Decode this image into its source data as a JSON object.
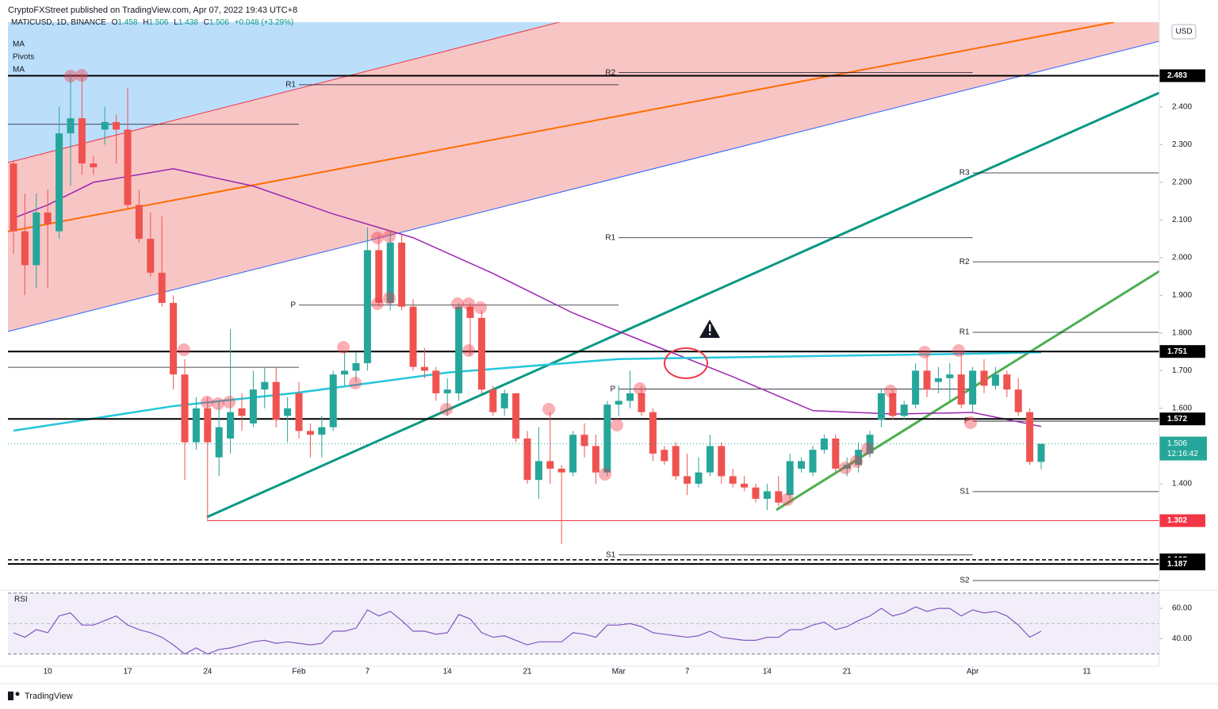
{
  "header": {
    "publisher": "CryptoFXStreet published on TradingView.com, Apr 07, 2022 19:43 UTC+8",
    "footer": "TradingView",
    "currency": "USD"
  },
  "legend": {
    "symbol": "MATICUSD, 1D, BINANCE",
    "ohlc": [
      {
        "label": "O",
        "value": 1.458
      },
      {
        "label": "H",
        "value": 1.506
      },
      {
        "label": "L",
        "value": 1.438
      },
      {
        "label": "C",
        "value": 1.506
      }
    ],
    "change": "+0.048 (+3.29%)"
  },
  "chart_data": [
    {
      "type": "candlestick",
      "up_color": "#26a69a",
      "down_color": "#ef5350",
      "x": [
        "2022-01-07",
        "2022-01-08",
        "2022-01-09",
        "2022-01-10",
        "2022-01-11",
        "2022-01-12",
        "2022-01-13",
        "2022-01-14",
        "2022-01-15",
        "2022-01-16",
        "2022-01-17",
        "2022-01-18",
        "2022-01-19",
        "2022-01-20",
        "2022-01-21",
        "2022-01-22",
        "2022-01-23",
        "2022-01-24",
        "2022-01-25",
        "2022-01-26",
        "2022-01-27",
        "2022-01-28",
        "2022-01-29",
        "2022-01-30",
        "2022-01-31",
        "2022-02-01",
        "2022-02-02",
        "2022-02-03",
        "2022-02-04",
        "2022-02-05",
        "2022-02-06",
        "2022-02-07",
        "2022-02-08",
        "2022-02-09",
        "2022-02-10",
        "2022-02-11",
        "2022-02-12",
        "2022-02-13",
        "2022-02-14",
        "2022-02-15",
        "2022-02-16",
        "2022-02-17",
        "2022-02-18",
        "2022-02-19",
        "2022-02-20",
        "2022-02-21",
        "2022-02-22",
        "2022-02-23",
        "2022-02-24",
        "2022-02-25",
        "2022-02-26",
        "2022-02-27",
        "2022-02-28",
        "2022-03-01",
        "2022-03-02",
        "2022-03-03",
        "2022-03-04",
        "2022-03-05",
        "2022-03-06",
        "2022-03-07",
        "2022-03-08",
        "2022-03-09",
        "2022-03-10",
        "2022-03-11",
        "2022-03-12",
        "2022-03-13",
        "2022-03-14",
        "2022-03-15",
        "2022-03-16",
        "2022-03-17",
        "2022-03-18",
        "2022-03-19",
        "2022-03-20",
        "2022-03-21",
        "2022-03-22",
        "2022-03-23",
        "2022-03-24",
        "2022-03-25",
        "2022-03-26",
        "2022-03-27",
        "2022-03-28",
        "2022-03-29",
        "2022-03-30",
        "2022-03-31",
        "2022-04-01",
        "2022-04-02",
        "2022-04-03",
        "2022-04-04",
        "2022-04-05",
        "2022-04-06",
        "2022-04-07"
      ],
      "open": [
        2.25,
        2.07,
        1.98,
        2.12,
        2.07,
        2.33,
        2.37,
        2.25,
        2.34,
        2.36,
        2.34,
        2.14,
        2.05,
        1.96,
        1.88,
        1.69,
        1.51,
        1.6,
        1.47,
        1.52,
        1.6,
        1.56,
        1.65,
        1.67,
        1.58,
        1.64,
        1.54,
        1.53,
        1.55,
        1.69,
        1.7,
        1.72,
        2.02,
        1.88,
        2.04,
        1.87,
        1.71,
        1.7,
        1.64,
        1.64,
        1.87,
        1.84,
        1.65,
        1.6,
        1.64,
        1.52,
        1.41,
        1.46,
        1.44,
        1.43,
        1.53,
        1.5,
        1.43,
        1.61,
        1.62,
        1.64,
        1.59,
        1.49,
        1.5,
        1.42,
        1.4,
        1.43,
        1.5,
        1.42,
        1.4,
        1.39,
        1.36,
        1.38,
        1.37,
        1.44,
        1.43,
        1.49,
        1.52,
        1.44,
        1.45,
        1.48,
        1.57,
        1.64,
        1.58,
        1.61,
        1.7,
        1.67,
        1.68,
        1.69,
        1.61,
        1.7,
        1.66,
        1.69,
        1.65,
        1.59,
        1.458
      ],
      "high": [
        2.26,
        2.17,
        2.17,
        2.18,
        2.4,
        2.49,
        2.49,
        2.27,
        2.4,
        2.38,
        2.45,
        2.18,
        2.12,
        2.11,
        1.9,
        1.73,
        1.63,
        1.63,
        1.62,
        1.81,
        1.64,
        1.7,
        1.71,
        1.71,
        1.63,
        1.67,
        1.56,
        1.58,
        1.7,
        1.75,
        1.75,
        2.08,
        2.06,
        2.07,
        2.06,
        1.89,
        1.76,
        1.71,
        1.68,
        1.88,
        1.88,
        1.86,
        1.66,
        1.65,
        1.64,
        1.54,
        1.55,
        1.59,
        1.45,
        1.54,
        1.56,
        1.53,
        1.62,
        1.66,
        1.7,
        1.66,
        1.6,
        1.5,
        1.51,
        1.48,
        1.47,
        1.53,
        1.51,
        1.44,
        1.42,
        1.4,
        1.4,
        1.42,
        1.48,
        1.47,
        1.5,
        1.53,
        1.53,
        1.47,
        1.51,
        1.54,
        1.65,
        1.65,
        1.62,
        1.72,
        1.74,
        1.71,
        1.72,
        1.75,
        1.71,
        1.73,
        1.71,
        1.7,
        1.68,
        1.6,
        1.506
      ],
      "low": [
        2.01,
        1.9,
        1.92,
        1.92,
        2.05,
        2.19,
        2.22,
        2.22,
        2.3,
        2.25,
        2.13,
        2.04,
        1.95,
        1.87,
        1.65,
        1.41,
        1.49,
        1.3,
        1.42,
        1.48,
        1.54,
        1.55,
        1.6,
        1.55,
        1.51,
        1.52,
        1.47,
        1.47,
        1.54,
        1.66,
        1.67,
        1.7,
        1.87,
        1.86,
        1.86,
        1.7,
        1.68,
        1.62,
        1.58,
        1.62,
        1.74,
        1.64,
        1.58,
        1.58,
        1.51,
        1.4,
        1.36,
        1.4,
        1.24,
        1.42,
        1.47,
        1.4,
        1.42,
        1.58,
        1.6,
        1.58,
        1.46,
        1.45,
        1.41,
        1.37,
        1.39,
        1.42,
        1.4,
        1.39,
        1.38,
        1.35,
        1.33,
        1.34,
        1.36,
        1.43,
        1.42,
        1.48,
        1.43,
        1.42,
        1.43,
        1.47,
        1.55,
        1.57,
        1.57,
        1.6,
        1.63,
        1.64,
        1.62,
        1.6,
        1.59,
        1.64,
        1.65,
        1.63,
        1.58,
        1.45,
        1.438
      ],
      "close": [
        2.07,
        1.98,
        2.12,
        2.09,
        2.33,
        2.37,
        2.25,
        2.24,
        2.36,
        2.34,
        2.14,
        2.05,
        1.96,
        1.88,
        1.69,
        1.51,
        1.6,
        1.51,
        1.55,
        1.59,
        1.58,
        1.65,
        1.67,
        1.57,
        1.6,
        1.54,
        1.53,
        1.55,
        1.69,
        1.7,
        1.72,
        2.02,
        1.88,
        2.04,
        1.87,
        1.71,
        1.7,
        1.64,
        1.65,
        1.87,
        1.84,
        1.65,
        1.59,
        1.64,
        1.52,
        1.41,
        1.46,
        1.44,
        1.43,
        1.53,
        1.5,
        1.43,
        1.61,
        1.62,
        1.64,
        1.59,
        1.48,
        1.46,
        1.42,
        1.4,
        1.43,
        1.5,
        1.42,
        1.4,
        1.39,
        1.36,
        1.38,
        1.35,
        1.46,
        1.46,
        1.49,
        1.52,
        1.44,
        1.45,
        1.49,
        1.53,
        1.64,
        1.58,
        1.61,
        1.7,
        1.65,
        1.68,
        1.69,
        1.61,
        1.7,
        1.66,
        1.69,
        1.65,
        1.59,
        1.458,
        1.506
      ],
      "series": [
        {
          "name": "MA",
          "color": "#9c27b0",
          "x": [
            "2022-01-07",
            "2022-01-10",
            "2022-01-14",
            "2022-01-21",
            "2022-01-28",
            "2022-02-04",
            "2022-02-11",
            "2022-02-18",
            "2022-02-25",
            "2022-03-04",
            "2022-03-11",
            "2022-03-18",
            "2022-03-25",
            "2022-04-01",
            "2022-04-07"
          ],
          "values": [
            2.105,
            2.14,
            2.2,
            2.236,
            2.19,
            2.116,
            2.053,
            1.958,
            1.853,
            1.768,
            1.684,
            1.594,
            1.585,
            1.589,
            1.552
          ]
        },
        {
          "name": "MA",
          "color": "#26c6da",
          "x": [
            "2022-01-07",
            "2022-01-14",
            "2022-01-21",
            "2022-02-01",
            "2022-02-14",
            "2022-03-01",
            "2022-03-14",
            "2022-04-01",
            "2022-04-07"
          ],
          "values": [
            1.541,
            1.573,
            1.606,
            1.642,
            1.695,
            1.731,
            1.737,
            1.745,
            1.749
          ]
        }
      ],
      "pivots_name": "Pivots",
      "pivots": [
        {
          "label": null,
          "value": 2.354,
          "from": "2022-01-01",
          "to": "2022-02-01"
        },
        {
          "label": null,
          "value": 1.709,
          "from": "2022-01-01",
          "to": "2022-02-01"
        },
        {
          "label": "R1",
          "value": 2.459,
          "from": "2022-02-01",
          "to": "2022-03-01"
        },
        {
          "label": "P",
          "value": 1.874,
          "from": "2022-02-01",
          "to": "2022-03-01"
        },
        {
          "label": "R2",
          "value": 2.491,
          "from": "2022-03-01",
          "to": "2022-04-01"
        },
        {
          "label": "R1",
          "value": 2.053,
          "from": "2022-03-01",
          "to": "2022-04-01"
        },
        {
          "label": "P",
          "value": 1.651,
          "from": "2022-03-01",
          "to": "2022-04-01"
        },
        {
          "label": "S1",
          "value": 1.211,
          "from": "2022-03-01",
          "to": "2022-04-01"
        },
        {
          "label": "R3",
          "value": 2.225,
          "from": "2022-04-01",
          "to": "2022-05-01"
        },
        {
          "label": "R2",
          "value": 1.989,
          "from": "2022-04-01",
          "to": "2022-05-01"
        },
        {
          "label": "R1",
          "value": 1.802,
          "from": "2022-04-01",
          "to": "2022-05-01"
        },
        {
          "label": "P",
          "value": 1.566,
          "from": "2022-04-01",
          "to": "2022-05-01"
        },
        {
          "label": "S1",
          "value": 1.379,
          "from": "2022-04-01",
          "to": "2022-05-01"
        },
        {
          "label": "S2",
          "value": 1.143,
          "from": "2022-04-01",
          "to": "2022-05-01"
        }
      ],
      "levels": [
        {
          "value": 2.483,
          "color": "#000000",
          "style": "solid"
        },
        {
          "value": 1.751,
          "color": "#000000",
          "style": "solid"
        },
        {
          "value": 1.572,
          "color": "#000000",
          "style": "solid"
        },
        {
          "value": 1.302,
          "color": "#f23645",
          "style": "thin",
          "from": "2022-01-24"
        },
        {
          "value": 1.198,
          "color": "#000000",
          "style": "dashed"
        },
        {
          "value": 1.187,
          "color": "#000000",
          "style": "solid"
        }
      ],
      "last": {
        "value": 1.506,
        "countdown": "12:16:42",
        "color": "#26a69a"
      },
      "ylim": [
        1.122,
        2.625
      ],
      "yticks": [
        {
          "value": 1.4,
          "label": "1.400"
        },
        {
          "value": 1.5,
          "label": "1.500"
        },
        {
          "value": 1.6,
          "label": "1.600"
        },
        {
          "value": 1.7,
          "label": "1.700"
        },
        {
          "value": 1.8,
          "label": "1.800"
        },
        {
          "value": 1.9,
          "label": "1.900"
        },
        {
          "value": 2.0,
          "label": "2.000"
        },
        {
          "value": 2.1,
          "label": "2.100"
        },
        {
          "value": 2.2,
          "label": "2.200"
        },
        {
          "value": 2.3,
          "label": "2.300"
        },
        {
          "value": 2.4,
          "label": "2.400"
        }
      ],
      "xticks": [
        {
          "value": "2022-01-10",
          "label": "10"
        },
        {
          "value": "2022-01-17",
          "label": "17"
        },
        {
          "value": "2022-01-24",
          "label": "24"
        },
        {
          "value": "2022-02-01",
          "label": "Feb"
        },
        {
          "value": "2022-02-07",
          "label": "7"
        },
        {
          "value": "2022-02-14",
          "label": "14"
        },
        {
          "value": "2022-02-21",
          "label": "21"
        },
        {
          "value": "2022-03-01",
          "label": "Mar"
        },
        {
          "value": "2022-03-07",
          "label": "7"
        },
        {
          "value": "2022-03-14",
          "label": "14"
        },
        {
          "value": "2022-03-21",
          "label": "21"
        },
        {
          "value": "2022-04-01",
          "label": "Apr"
        },
        {
          "value": "2022-04-11",
          "label": "11"
        }
      ]
    },
    {
      "type": "line",
      "title": "RSI",
      "color": "#7e57c2",
      "band": [
        30,
        70
      ],
      "band_color": "rgba(126,87,194,0.1)",
      "values": [
        44,
        41,
        46,
        44,
        55,
        57,
        49,
        49,
        52,
        55,
        49,
        46,
        44,
        41,
        36,
        30,
        34,
        30,
        33,
        34,
        36,
        38,
        39,
        37,
        38,
        37,
        36,
        37,
        45,
        45,
        47,
        59,
        55,
        58,
        52,
        45,
        45,
        43,
        44,
        56,
        53,
        44,
        41,
        42,
        39,
        36,
        38,
        38,
        38,
        44,
        43,
        41,
        49,
        49,
        50,
        48,
        44,
        43,
        42,
        41,
        42,
        45,
        41,
        40,
        39,
        39,
        41,
        41,
        46,
        46,
        49,
        51,
        46,
        48,
        52,
        55,
        60,
        55,
        57,
        61,
        58,
        60,
        60,
        55,
        59,
        57,
        58,
        55,
        49,
        41,
        45
      ],
      "ylim": [
        22,
        71
      ],
      "yticks": [
        {
          "value": 40,
          "label": "40.00"
        },
        {
          "value": 60,
          "label": "60.00"
        }
      ]
    }
  ]
}
